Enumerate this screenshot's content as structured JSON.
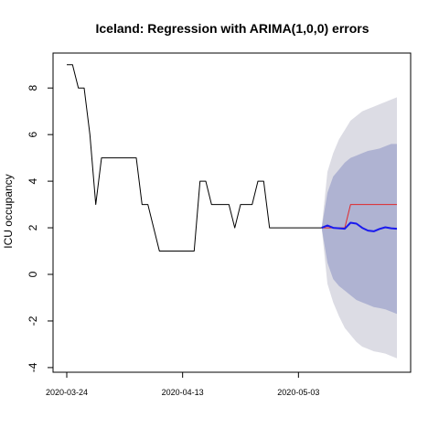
{
  "chart_data": {
    "type": "line",
    "title": "Iceland: Regression with ARIMA(1,0,0) errors",
    "xlabel": "",
    "ylabel": "ICU occupancy",
    "x_ticks": [
      "2020-03-24",
      "2020-04-13",
      "2020-05-03"
    ],
    "y_ticks": [
      "-4",
      "-2",
      "0",
      "2",
      "4",
      "6",
      "8"
    ],
    "xlim": [
      "2020-03-24",
      "2020-05-20"
    ],
    "ylim": [
      -4.2,
      9.5
    ],
    "grid": false,
    "legend": "none",
    "series": [
      {
        "role": "observed",
        "color": "#000000",
        "x": [
          "2020-03-24",
          "2020-03-25",
          "2020-03-26",
          "2020-03-27",
          "2020-03-28",
          "2020-03-29",
          "2020-03-30",
          "2020-03-31",
          "2020-04-01",
          "2020-04-02",
          "2020-04-03",
          "2020-04-04",
          "2020-04-05",
          "2020-04-06",
          "2020-04-07",
          "2020-04-08",
          "2020-04-09",
          "2020-04-10",
          "2020-04-11",
          "2020-04-12",
          "2020-04-13",
          "2020-04-14",
          "2020-04-15",
          "2020-04-16",
          "2020-04-17",
          "2020-04-18",
          "2020-04-19",
          "2020-04-20",
          "2020-04-21",
          "2020-04-22",
          "2020-04-23",
          "2020-04-24",
          "2020-04-25",
          "2020-04-26",
          "2020-04-27",
          "2020-04-28",
          "2020-04-29",
          "2020-04-30",
          "2020-05-01",
          "2020-05-02",
          "2020-05-03",
          "2020-05-04",
          "2020-05-05",
          "2020-05-06",
          "2020-05-07"
        ],
        "values": [
          9,
          9,
          8,
          8,
          6,
          3,
          5,
          5,
          5,
          5,
          5,
          5,
          5,
          3,
          3,
          2,
          1,
          1,
          1,
          1,
          1,
          1,
          1,
          4,
          4,
          3,
          3,
          3,
          3,
          2,
          3,
          3,
          3,
          4,
          4,
          2,
          2,
          2,
          2,
          2,
          2,
          2,
          2,
          2,
          2
        ]
      },
      {
        "role": "actual",
        "color": "#e0282c",
        "x": [
          "2020-05-07",
          "2020-05-08",
          "2020-05-09",
          "2020-05-10",
          "2020-05-11",
          "2020-05-12",
          "2020-05-13",
          "2020-05-14",
          "2020-05-15",
          "2020-05-16",
          "2020-05-17",
          "2020-05-18",
          "2020-05-19",
          "2020-05-20"
        ],
        "values": [
          2,
          2,
          2,
          2,
          2,
          3,
          3,
          3,
          3,
          3,
          3,
          3,
          3,
          3
        ]
      },
      {
        "role": "forecast",
        "color": "#1a1aee",
        "x": [
          "2020-05-07",
          "2020-05-08",
          "2020-05-09",
          "2020-05-10",
          "2020-05-11",
          "2020-05-12",
          "2020-05-13",
          "2020-05-14",
          "2020-05-15",
          "2020-05-16",
          "2020-05-17",
          "2020-05-18",
          "2020-05-19",
          "2020-05-20"
        ],
        "values": [
          2.0,
          2.1,
          2.0,
          1.98,
          1.96,
          2.22,
          2.18,
          2.0,
          1.88,
          1.85,
          1.95,
          2.02,
          1.98,
          1.96
        ]
      }
    ],
    "intervals": [
      {
        "level": "95%",
        "color": "#dcdce4",
        "x": [
          "2020-05-07",
          "2020-05-08",
          "2020-05-09",
          "2020-05-10",
          "2020-05-11",
          "2020-05-12",
          "2020-05-13",
          "2020-05-14",
          "2020-05-15",
          "2020-05-16",
          "2020-05-17",
          "2020-05-18",
          "2020-05-19",
          "2020-05-20"
        ],
        "lower": [
          2.0,
          -0.4,
          -1.2,
          -1.8,
          -2.3,
          -2.6,
          -2.9,
          -3.1,
          -3.2,
          -3.3,
          -3.35,
          -3.4,
          -3.5,
          -3.6
        ],
        "upper": [
          2.0,
          4.4,
          5.2,
          5.8,
          6.2,
          6.6,
          6.8,
          7.0,
          7.1,
          7.2,
          7.3,
          7.4,
          7.5,
          7.6
        ]
      },
      {
        "level": "80%",
        "color": "#afb3d2",
        "x": [
          "2020-05-07",
          "2020-05-08",
          "2020-05-09",
          "2020-05-10",
          "2020-05-11",
          "2020-05-12",
          "2020-05-13",
          "2020-05-14",
          "2020-05-15",
          "2020-05-16",
          "2020-05-17",
          "2020-05-18",
          "2020-05-19",
          "2020-05-20"
        ],
        "lower": [
          2.0,
          0.5,
          -0.2,
          -0.5,
          -0.7,
          -0.9,
          -1.1,
          -1.2,
          -1.3,
          -1.4,
          -1.45,
          -1.5,
          -1.6,
          -1.7
        ],
        "upper": [
          2.0,
          3.5,
          4.2,
          4.5,
          4.8,
          5.0,
          5.1,
          5.2,
          5.3,
          5.35,
          5.4,
          5.5,
          5.6,
          5.6
        ]
      }
    ]
  }
}
